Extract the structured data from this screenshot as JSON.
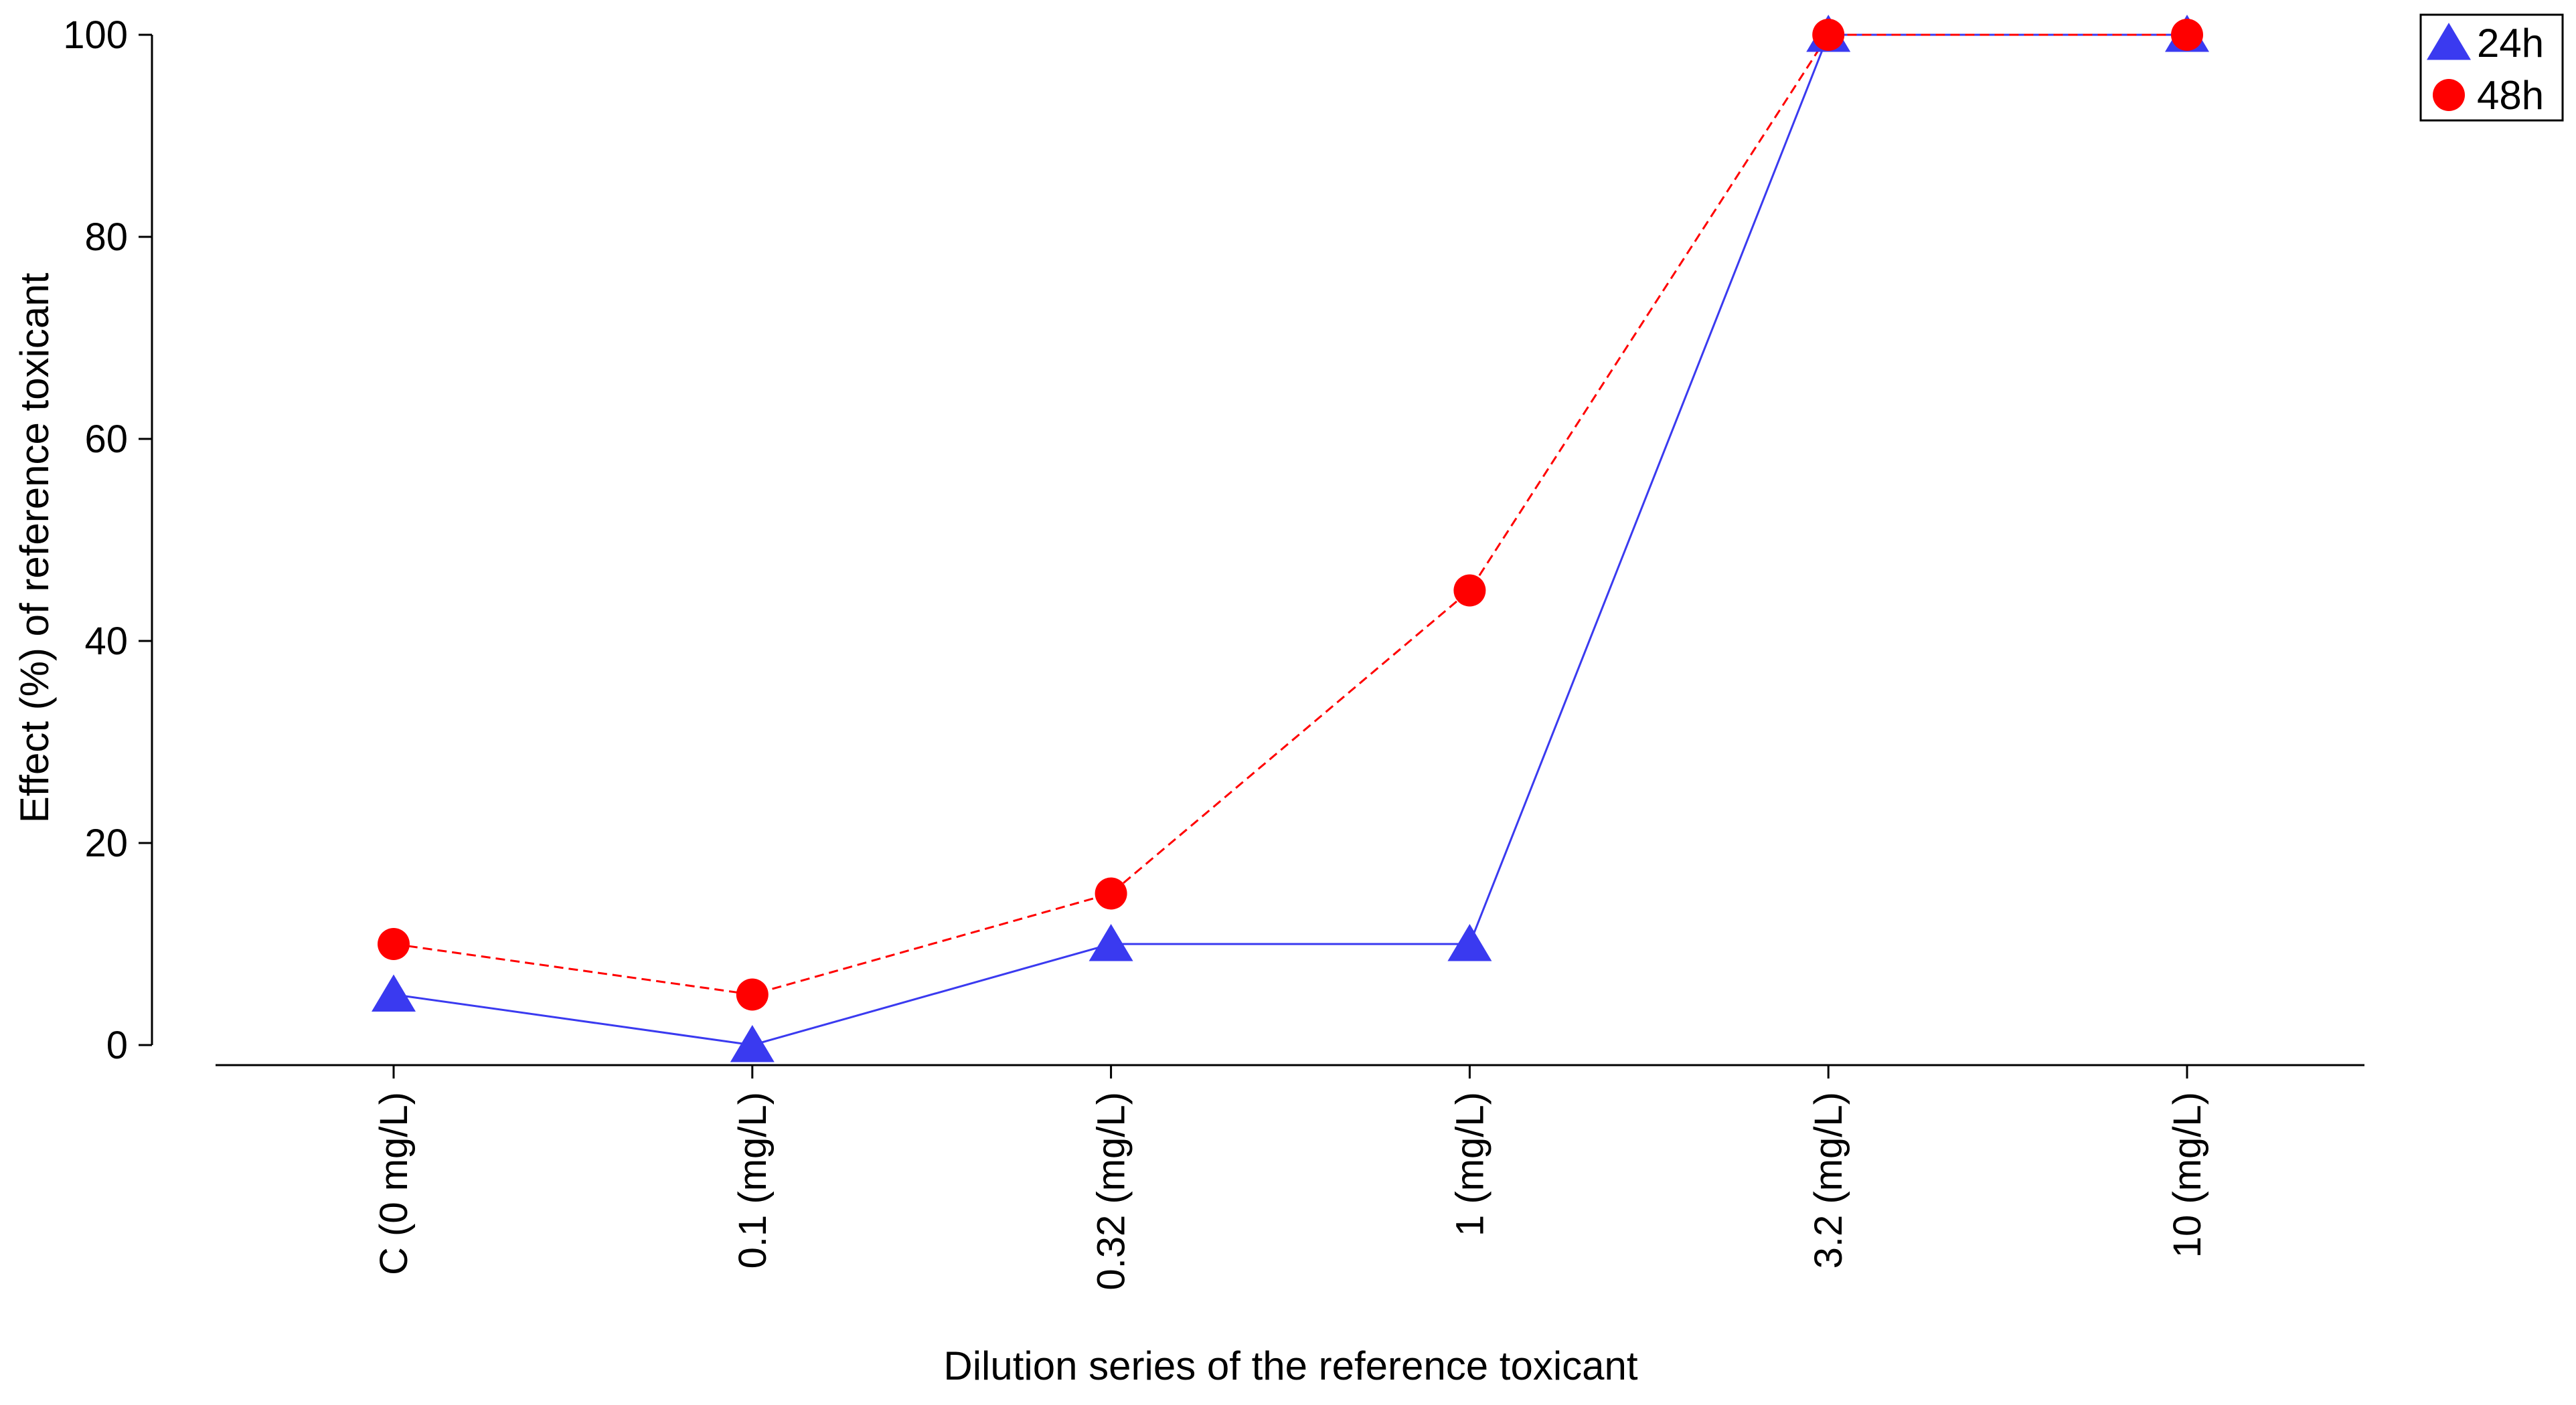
{
  "chart_data": {
    "type": "line",
    "title": "",
    "xlabel": "Dilution series of the reference toxicant",
    "ylabel": "Effect (%) of reference toxicant",
    "categories": [
      "C (0 mg/L)",
      "0.1  (mg/L)",
      "0.32  (mg/L)",
      "1  (mg/L)",
      "3.2  (mg/L)",
      "10  (mg/L)"
    ],
    "ylim": [
      0,
      100
    ],
    "yticks": [
      0,
      20,
      40,
      60,
      80,
      100
    ],
    "grid": false,
    "legend_position": "top-right",
    "series": [
      {
        "name": "24h",
        "values": [
          5,
          0,
          10,
          10,
          100,
          100
        ],
        "color": "#3a3af0",
        "marker": "triangle",
        "line_style": "solid"
      },
      {
        "name": "48h",
        "values": [
          10,
          5,
          15,
          45,
          100,
          100
        ],
        "color": "#ff0000",
        "marker": "circle",
        "line_style": "dashed"
      }
    ]
  }
}
